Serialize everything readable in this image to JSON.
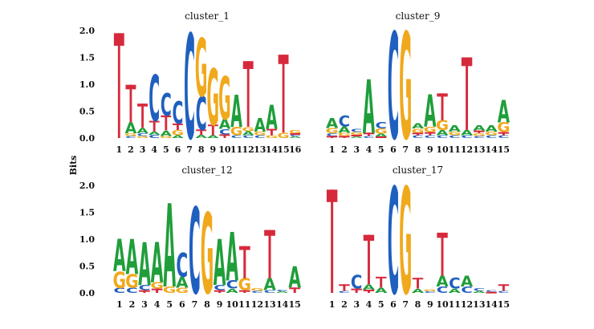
{
  "figure": {
    "ylabel": "Bits"
  },
  "colors": {
    "A": "#1f9e3a",
    "C": "#1f5fbf",
    "G": "#f0a91c",
    "T": "#d62a3c"
  },
  "chart_data": [
    {
      "type": "sequence-logo",
      "title": "cluster_1",
      "ylim": [
        0,
        2.0
      ],
      "yticks": [
        "0.0",
        "0.5",
        "1.0",
        "1.5",
        "2.0"
      ],
      "positions": [
        "1",
        "2",
        "3",
        "4",
        "5",
        "6",
        "7",
        "8",
        "9",
        "10",
        "11",
        "12",
        "13",
        "14",
        "15",
        "16"
      ],
      "stacks": [
        [
          [
            "T",
            1.95
          ]
        ],
        [
          [
            "C",
            0.04
          ],
          [
            "G",
            0.05
          ],
          [
            "A",
            0.2
          ],
          [
            "T",
            0.7
          ]
        ],
        [
          [
            "G",
            0.04
          ],
          [
            "C",
            0.05
          ],
          [
            "A",
            0.1
          ],
          [
            "T",
            0.45
          ]
        ],
        [
          [
            "C",
            0.06
          ],
          [
            "A",
            0.06
          ],
          [
            "T",
            0.2
          ],
          [
            "C",
            0.85
          ]
        ],
        [
          [
            "G",
            0.04
          ],
          [
            "A",
            0.1
          ],
          [
            "T",
            0.28
          ],
          [
            "C",
            0.42
          ]
        ],
        [
          [
            "A",
            0.05
          ],
          [
            "G",
            0.1
          ],
          [
            "T",
            0.12
          ],
          [
            "C",
            0.42
          ]
        ],
        [
          [
            "C",
            1.95
          ]
        ],
        [
          [
            "A",
            0.06
          ],
          [
            "T",
            0.1
          ],
          [
            "C",
            0.62
          ],
          [
            "G",
            1.08
          ]
        ],
        [
          [
            "A",
            0.05
          ],
          [
            "T",
            0.2
          ],
          [
            "G",
            1.05
          ]
        ],
        [
          [
            "T",
            0.07
          ],
          [
            "C",
            0.1
          ],
          [
            "A",
            0.18
          ],
          [
            "G",
            0.8
          ]
        ],
        [
          [
            "C",
            0.05
          ],
          [
            "G",
            0.15
          ],
          [
            "A",
            0.6
          ]
        ],
        [
          [
            "C",
            0.05
          ],
          [
            "A",
            0.08
          ],
          [
            "G",
            0.08
          ],
          [
            "T",
            1.22
          ]
        ],
        [
          [
            "C",
            0.05
          ],
          [
            "G",
            0.07
          ],
          [
            "A",
            0.25
          ]
        ],
        [
          [
            "G",
            0.05
          ],
          [
            "T",
            0.12
          ],
          [
            "A",
            0.45
          ]
        ],
        [
          [
            "G",
            0.1
          ],
          [
            "T",
            1.45
          ]
        ],
        [
          [
            "A",
            0.03
          ],
          [
            "C",
            0.03
          ],
          [
            "T",
            0.03
          ],
          [
            "G",
            0.06
          ]
        ]
      ]
    },
    {
      "type": "sequence-logo",
      "title": "cluster_9",
      "ylim": [
        0,
        2.0
      ],
      "yticks": [
        "0.0",
        "0.5",
        "1.0",
        "1.5",
        "2.0"
      ],
      "positions": [
        "1",
        "2",
        "3",
        "4",
        "5",
        "6",
        "7",
        "8",
        "9",
        "10",
        "11",
        "12",
        "13",
        "14",
        "15"
      ],
      "stacks": [
        [
          [
            "T",
            0.04
          ],
          [
            "C",
            0.05
          ],
          [
            "G",
            0.1
          ],
          [
            "A",
            0.18
          ]
        ],
        [
          [
            "T",
            0.04
          ],
          [
            "G",
            0.06
          ],
          [
            "A",
            0.12
          ],
          [
            "C",
            0.2
          ]
        ],
        [
          [
            "A",
            0.03
          ],
          [
            "T",
            0.03
          ],
          [
            "G",
            0.05
          ],
          [
            "C",
            0.06
          ]
        ],
        [
          [
            "C",
            0.04
          ],
          [
            "T",
            0.06
          ],
          [
            "A",
            1.0
          ]
        ],
        [
          [
            "T",
            0.03
          ],
          [
            "A",
            0.05
          ],
          [
            "G",
            0.1
          ],
          [
            "C",
            0.12
          ]
        ],
        [
          [
            "C",
            1.98
          ]
        ],
        [
          [
            "G",
            1.98
          ]
        ],
        [
          [
            "C",
            0.05
          ],
          [
            "T",
            0.05
          ],
          [
            "G",
            0.08
          ],
          [
            "A",
            0.1
          ]
        ],
        [
          [
            "C",
            0.05
          ],
          [
            "T",
            0.06
          ],
          [
            "G",
            0.1
          ],
          [
            "A",
            0.6
          ]
        ],
        [
          [
            "C",
            0.05
          ],
          [
            "A",
            0.1
          ],
          [
            "G",
            0.18
          ],
          [
            "T",
            0.5
          ]
        ],
        [
          [
            "C",
            0.05
          ],
          [
            "G",
            0.07
          ],
          [
            "A",
            0.12
          ]
        ],
        [
          [
            "C",
            0.05
          ],
          [
            "A",
            0.1
          ],
          [
            "T",
            1.35
          ]
        ],
        [
          [
            "C",
            0.04
          ],
          [
            "G",
            0.05
          ],
          [
            "T",
            0.05
          ],
          [
            "A",
            0.1
          ]
        ],
        [
          [
            "C",
            0.05
          ],
          [
            "G",
            0.07
          ],
          [
            "A",
            0.12
          ]
        ],
        [
          [
            "C",
            0.05
          ],
          [
            "T",
            0.06
          ],
          [
            "G",
            0.18
          ],
          [
            "A",
            0.42
          ]
        ]
      ]
    },
    {
      "type": "sequence-logo",
      "title": "cluster_12",
      "ylim": [
        0,
        2.0
      ],
      "yticks": [
        "0.0",
        "0.5",
        "1.0",
        "1.5",
        "2.0"
      ],
      "positions": [
        "1",
        "2",
        "3",
        "4",
        "5",
        "6",
        "7",
        "8",
        "9",
        "10",
        "11",
        "12",
        "13",
        "14",
        "15"
      ],
      "stacks": [
        [
          [
            "C",
            0.1
          ],
          [
            "G",
            0.3
          ],
          [
            "A",
            0.6
          ]
        ],
        [
          [
            "C",
            0.1
          ],
          [
            "G",
            0.25
          ],
          [
            "A",
            0.65
          ]
        ],
        [
          [
            "T",
            0.05
          ],
          [
            "C",
            0.1
          ],
          [
            "A",
            0.8
          ]
        ],
        [
          [
            "T",
            0.08
          ],
          [
            "G",
            0.12
          ],
          [
            "A",
            0.75
          ]
        ],
        [
          [
            "G",
            0.12
          ],
          [
            "A",
            1.55
          ]
        ],
        [
          [
            "G",
            0.1
          ],
          [
            "A",
            0.2
          ],
          [
            "C",
            0.45
          ]
        ],
        [
          [
            "C",
            1.6
          ]
        ],
        [
          [
            "G",
            1.5
          ]
        ],
        [
          [
            "T",
            0.05
          ],
          [
            "C",
            0.1
          ],
          [
            "A",
            0.85
          ]
        ],
        [
          [
            "A",
            0.08
          ],
          [
            "C",
            0.15
          ],
          [
            "A",
            0.9
          ]
        ],
        [
          [
            "T",
            0.05
          ],
          [
            "G",
            0.22
          ],
          [
            "T",
            0.6
          ]
        ],
        [
          [
            "C",
            0.04
          ],
          [
            "G",
            0.05
          ]
        ],
        [
          [
            "C",
            0.05
          ],
          [
            "A",
            0.22
          ],
          [
            "T",
            0.9
          ]
        ],
        [
          [
            "A",
            0.03
          ],
          [
            "C",
            0.03
          ]
        ],
        [
          [
            "T",
            0.1
          ],
          [
            "A",
            0.4
          ]
        ]
      ]
    },
    {
      "type": "sequence-logo",
      "title": "cluster_17",
      "ylim": [
        0,
        2.0
      ],
      "yticks": [
        "0.0",
        "0.5",
        "1.0",
        "1.5",
        "2.0"
      ],
      "positions": [
        "1",
        "2",
        "3",
        "4",
        "5",
        "6",
        "7",
        "8",
        "9",
        "10",
        "11",
        "12",
        "13",
        "14",
        "15"
      ],
      "stacks": [
        [
          [
            "T",
            1.92
          ]
        ],
        [
          [
            "C",
            0.04
          ],
          [
            "T",
            0.12
          ]
        ],
        [
          [
            "T",
            0.08
          ],
          [
            "C",
            0.25
          ]
        ],
        [
          [
            "T",
            0.06
          ],
          [
            "A",
            0.1
          ],
          [
            "T",
            0.92
          ]
        ],
        [
          [
            "A",
            0.1
          ],
          [
            "T",
            0.2
          ]
        ],
        [
          [
            "C",
            1.98
          ]
        ],
        [
          [
            "G",
            1.98
          ]
        ],
        [
          [
            "A",
            0.08
          ],
          [
            "T",
            0.2
          ]
        ],
        [
          [
            "C",
            0.03
          ],
          [
            "G",
            0.04
          ]
        ],
        [
          [
            "C",
            0.12
          ],
          [
            "A",
            0.2
          ],
          [
            "T",
            0.8
          ]
        ],
        [
          [
            "A",
            0.08
          ],
          [
            "C",
            0.2
          ]
        ],
        [
          [
            "C",
            0.12
          ],
          [
            "A",
            0.2
          ]
        ],
        [
          [
            "A",
            0.04
          ],
          [
            "C",
            0.05
          ]
        ],
        [
          [
            "T",
            0.02
          ],
          [
            "C",
            0.03
          ]
        ],
        [
          [
            "C",
            0.04
          ],
          [
            "T",
            0.12
          ]
        ]
      ]
    }
  ]
}
